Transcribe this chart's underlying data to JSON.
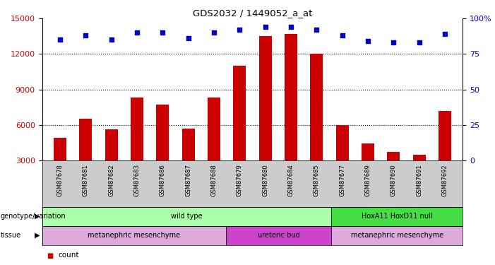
{
  "title": "GDS2032 / 1449052_a_at",
  "samples": [
    "GSM87678",
    "GSM87681",
    "GSM87682",
    "GSM87683",
    "GSM87686",
    "GSM87687",
    "GSM87688",
    "GSM87679",
    "GSM87680",
    "GSM87684",
    "GSM87685",
    "GSM87677",
    "GSM87689",
    "GSM87690",
    "GSM87691",
    "GSM87692"
  ],
  "bar_values": [
    4900,
    6500,
    5600,
    8300,
    7700,
    5700,
    8300,
    11000,
    13500,
    13700,
    12000,
    6000,
    4400,
    3700,
    3500,
    7200
  ],
  "scatter_values": [
    85,
    88,
    85,
    90,
    90,
    86,
    90,
    92,
    94,
    94,
    92,
    88,
    84,
    83,
    83,
    89
  ],
  "bar_color": "#cc0000",
  "scatter_color": "#0000cc",
  "ylim_left": [
    3000,
    15000
  ],
  "ylim_right": [
    0,
    100
  ],
  "yticks_left": [
    3000,
    6000,
    9000,
    12000,
    15000
  ],
  "yticks_right": [
    0,
    25,
    50,
    75,
    100
  ],
  "yticklabels_right": [
    "0",
    "25",
    "50",
    "75",
    "100%"
  ],
  "genotype_groups": [
    {
      "label": "wild type",
      "start": 0,
      "end": 10,
      "color": "#aaffaa"
    },
    {
      "label": "HoxA11 HoxD11 null",
      "start": 11,
      "end": 15,
      "color": "#44dd44"
    }
  ],
  "tissue_groups": [
    {
      "label": "metanephric mesenchyme",
      "start": 0,
      "end": 6,
      "color": "#ddaadd"
    },
    {
      "label": "ureteric bud",
      "start": 7,
      "end": 10,
      "color": "#cc44cc"
    },
    {
      "label": "metanephric mesenchyme",
      "start": 11,
      "end": 15,
      "color": "#ddaadd"
    }
  ],
  "legend_count_color": "#cc0000",
  "legend_percentile_color": "#0000cc"
}
